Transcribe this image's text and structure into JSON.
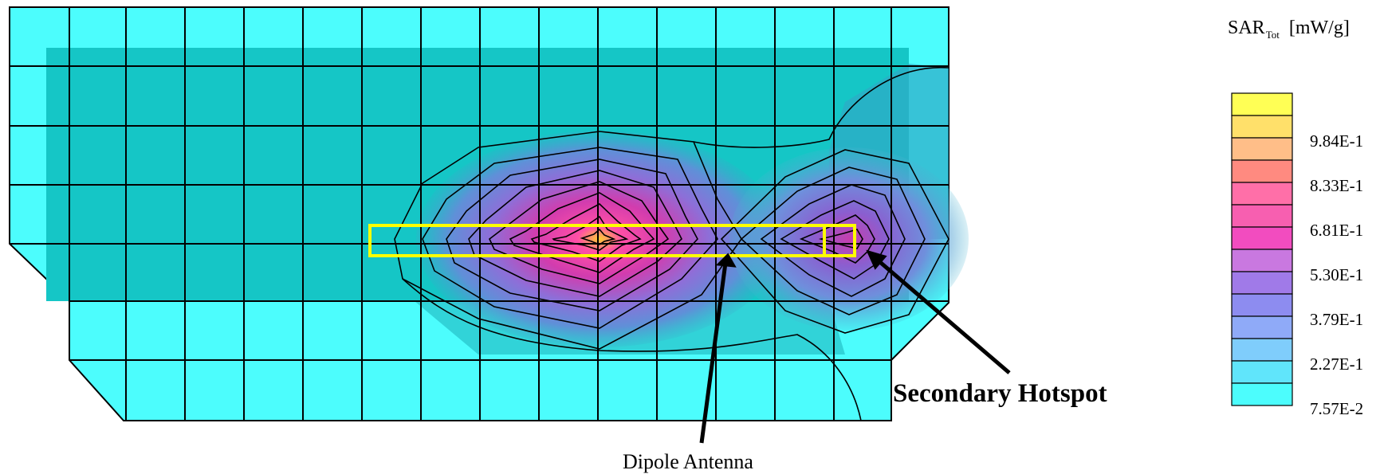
{
  "colorbar": {
    "title_main": "SAR",
    "title_sub": "Tot",
    "units": "[mW/g]",
    "tick_labels": [
      "9.84E-1",
      "8.33E-1",
      "6.81E-1",
      "5.30E-1",
      "3.79E-1",
      "2.27E-1",
      "7.57E-2"
    ],
    "colors": [
      "#ffff55",
      "#ffe06a",
      "#ffbe88",
      "#ff8a80",
      "#ff6fa8",
      "#f75fb0",
      "#f24cbf",
      "#c978e0",
      "#a07ae8",
      "#8d8cf0",
      "#8faaf8",
      "#7fcdfc",
      "#60e5fb",
      "#4cfdfd"
    ]
  },
  "annotations": {
    "dipole": "Dipole Antenna",
    "hotspot": "Secondary Hotspot"
  },
  "colors": {
    "mesh_fill": "#4cfdfd",
    "shadow_region": "#15c6c6",
    "antenna_outline": "#ffff00"
  }
}
